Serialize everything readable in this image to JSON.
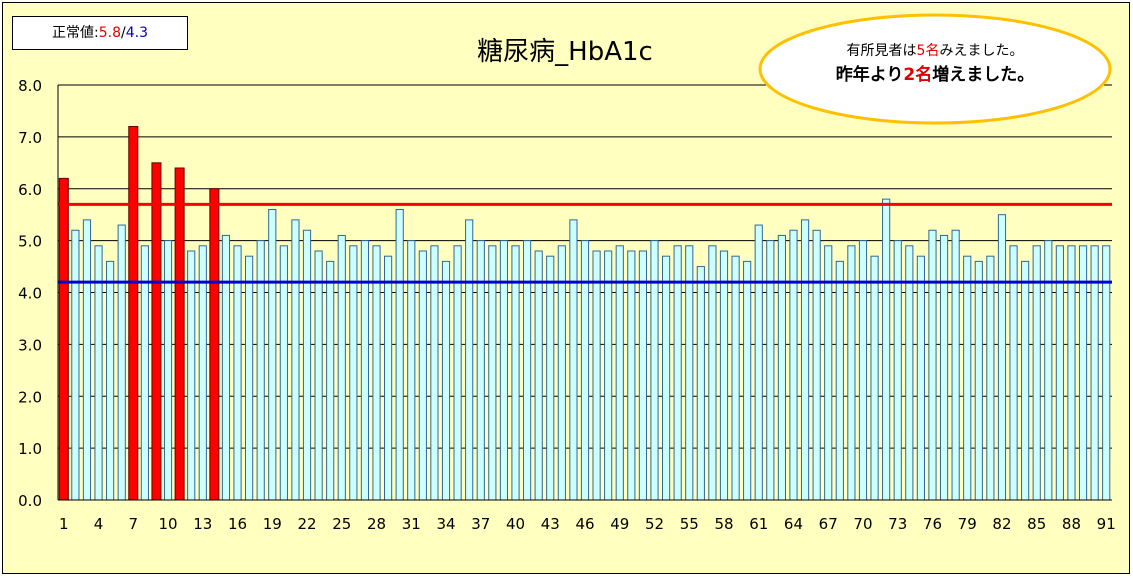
{
  "legend": {
    "prefix": "正常値:",
    "high": "5.8",
    "sep": "/",
    "low": "4.3"
  },
  "callout": {
    "line1_a": "有所見者は",
    "line1_b": "5名",
    "line1_c": "みえました。",
    "line2_a": "昨年より",
    "line2_b": "2名",
    "line2_c": "増えました。"
  },
  "chart_data": {
    "type": "bar",
    "title": "糖尿病_HbA1c",
    "xlabel": "",
    "ylabel": "",
    "ylim": [
      0,
      8
    ],
    "yticks": [
      "0.0",
      "1.0",
      "2.0",
      "3.0",
      "4.0",
      "5.0",
      "6.0",
      "7.0",
      "8.0"
    ],
    "xtick_labels": [
      "1",
      "4",
      "7",
      "10",
      "13",
      "16",
      "19",
      "22",
      "25",
      "28",
      "31",
      "34",
      "37",
      "40",
      "43",
      "46",
      "49",
      "52",
      "55",
      "58",
      "61",
      "64",
      "67",
      "70",
      "73",
      "76",
      "79",
      "82",
      "85",
      "88",
      "91"
    ],
    "reference_lines": [
      {
        "value": 5.7,
        "color": "#ff0000"
      },
      {
        "value": 4.2,
        "color": "#0000cc"
      }
    ],
    "colors": {
      "normal_fill": "#ccffff",
      "normal_stroke": "#336699",
      "abnormal_fill": "#ff0000",
      "abnormal_stroke": "#660000"
    },
    "x": [
      1,
      2,
      3,
      4,
      5,
      6,
      7,
      8,
      9,
      10,
      11,
      12,
      13,
      14,
      15,
      16,
      17,
      18,
      19,
      20,
      21,
      22,
      23,
      24,
      25,
      26,
      27,
      28,
      29,
      30,
      31,
      32,
      33,
      34,
      35,
      36,
      37,
      38,
      39,
      40,
      41,
      42,
      43,
      44,
      45,
      46,
      47,
      48,
      49,
      50,
      51,
      52,
      53,
      54,
      55,
      56,
      57,
      58,
      59,
      60,
      61,
      62,
      63,
      64,
      65,
      66,
      67,
      68,
      69,
      70,
      71,
      72,
      73,
      74,
      75,
      76,
      77,
      78,
      79,
      80,
      81,
      82,
      83,
      84,
      85,
      86,
      87,
      88,
      89,
      90,
      91
    ],
    "values": [
      6.2,
      5.2,
      5.4,
      4.9,
      4.6,
      5.3,
      7.2,
      4.9,
      6.5,
      5.0,
      6.4,
      4.8,
      4.9,
      6.0,
      5.1,
      4.9,
      4.7,
      5.0,
      5.6,
      4.9,
      5.4,
      5.2,
      4.8,
      4.6,
      5.1,
      4.9,
      5.0,
      4.9,
      4.7,
      5.6,
      5.0,
      4.8,
      4.9,
      4.6,
      4.9,
      5.4,
      5.0,
      4.9,
      5.0,
      4.9,
      5.0,
      4.8,
      4.7,
      4.9,
      5.4,
      5.0,
      4.8,
      4.8,
      4.9,
      4.8,
      4.8,
      5.0,
      4.7,
      4.9,
      4.9,
      4.5,
      4.9,
      4.8,
      4.7,
      4.6,
      5.3,
      5.0,
      5.1,
      5.2,
      5.4,
      5.2,
      4.9,
      4.6,
      4.9,
      5.0,
      4.7,
      5.8,
      5.0,
      4.9,
      4.7,
      5.2,
      5.1,
      5.2,
      4.7,
      4.6,
      4.7,
      5.5,
      4.9,
      4.6,
      4.9,
      5.0,
      4.9,
      4.9,
      4.9,
      4.9,
      4.9
    ],
    "abnormal_index": [
      1,
      7,
      9,
      11,
      14
    ]
  }
}
